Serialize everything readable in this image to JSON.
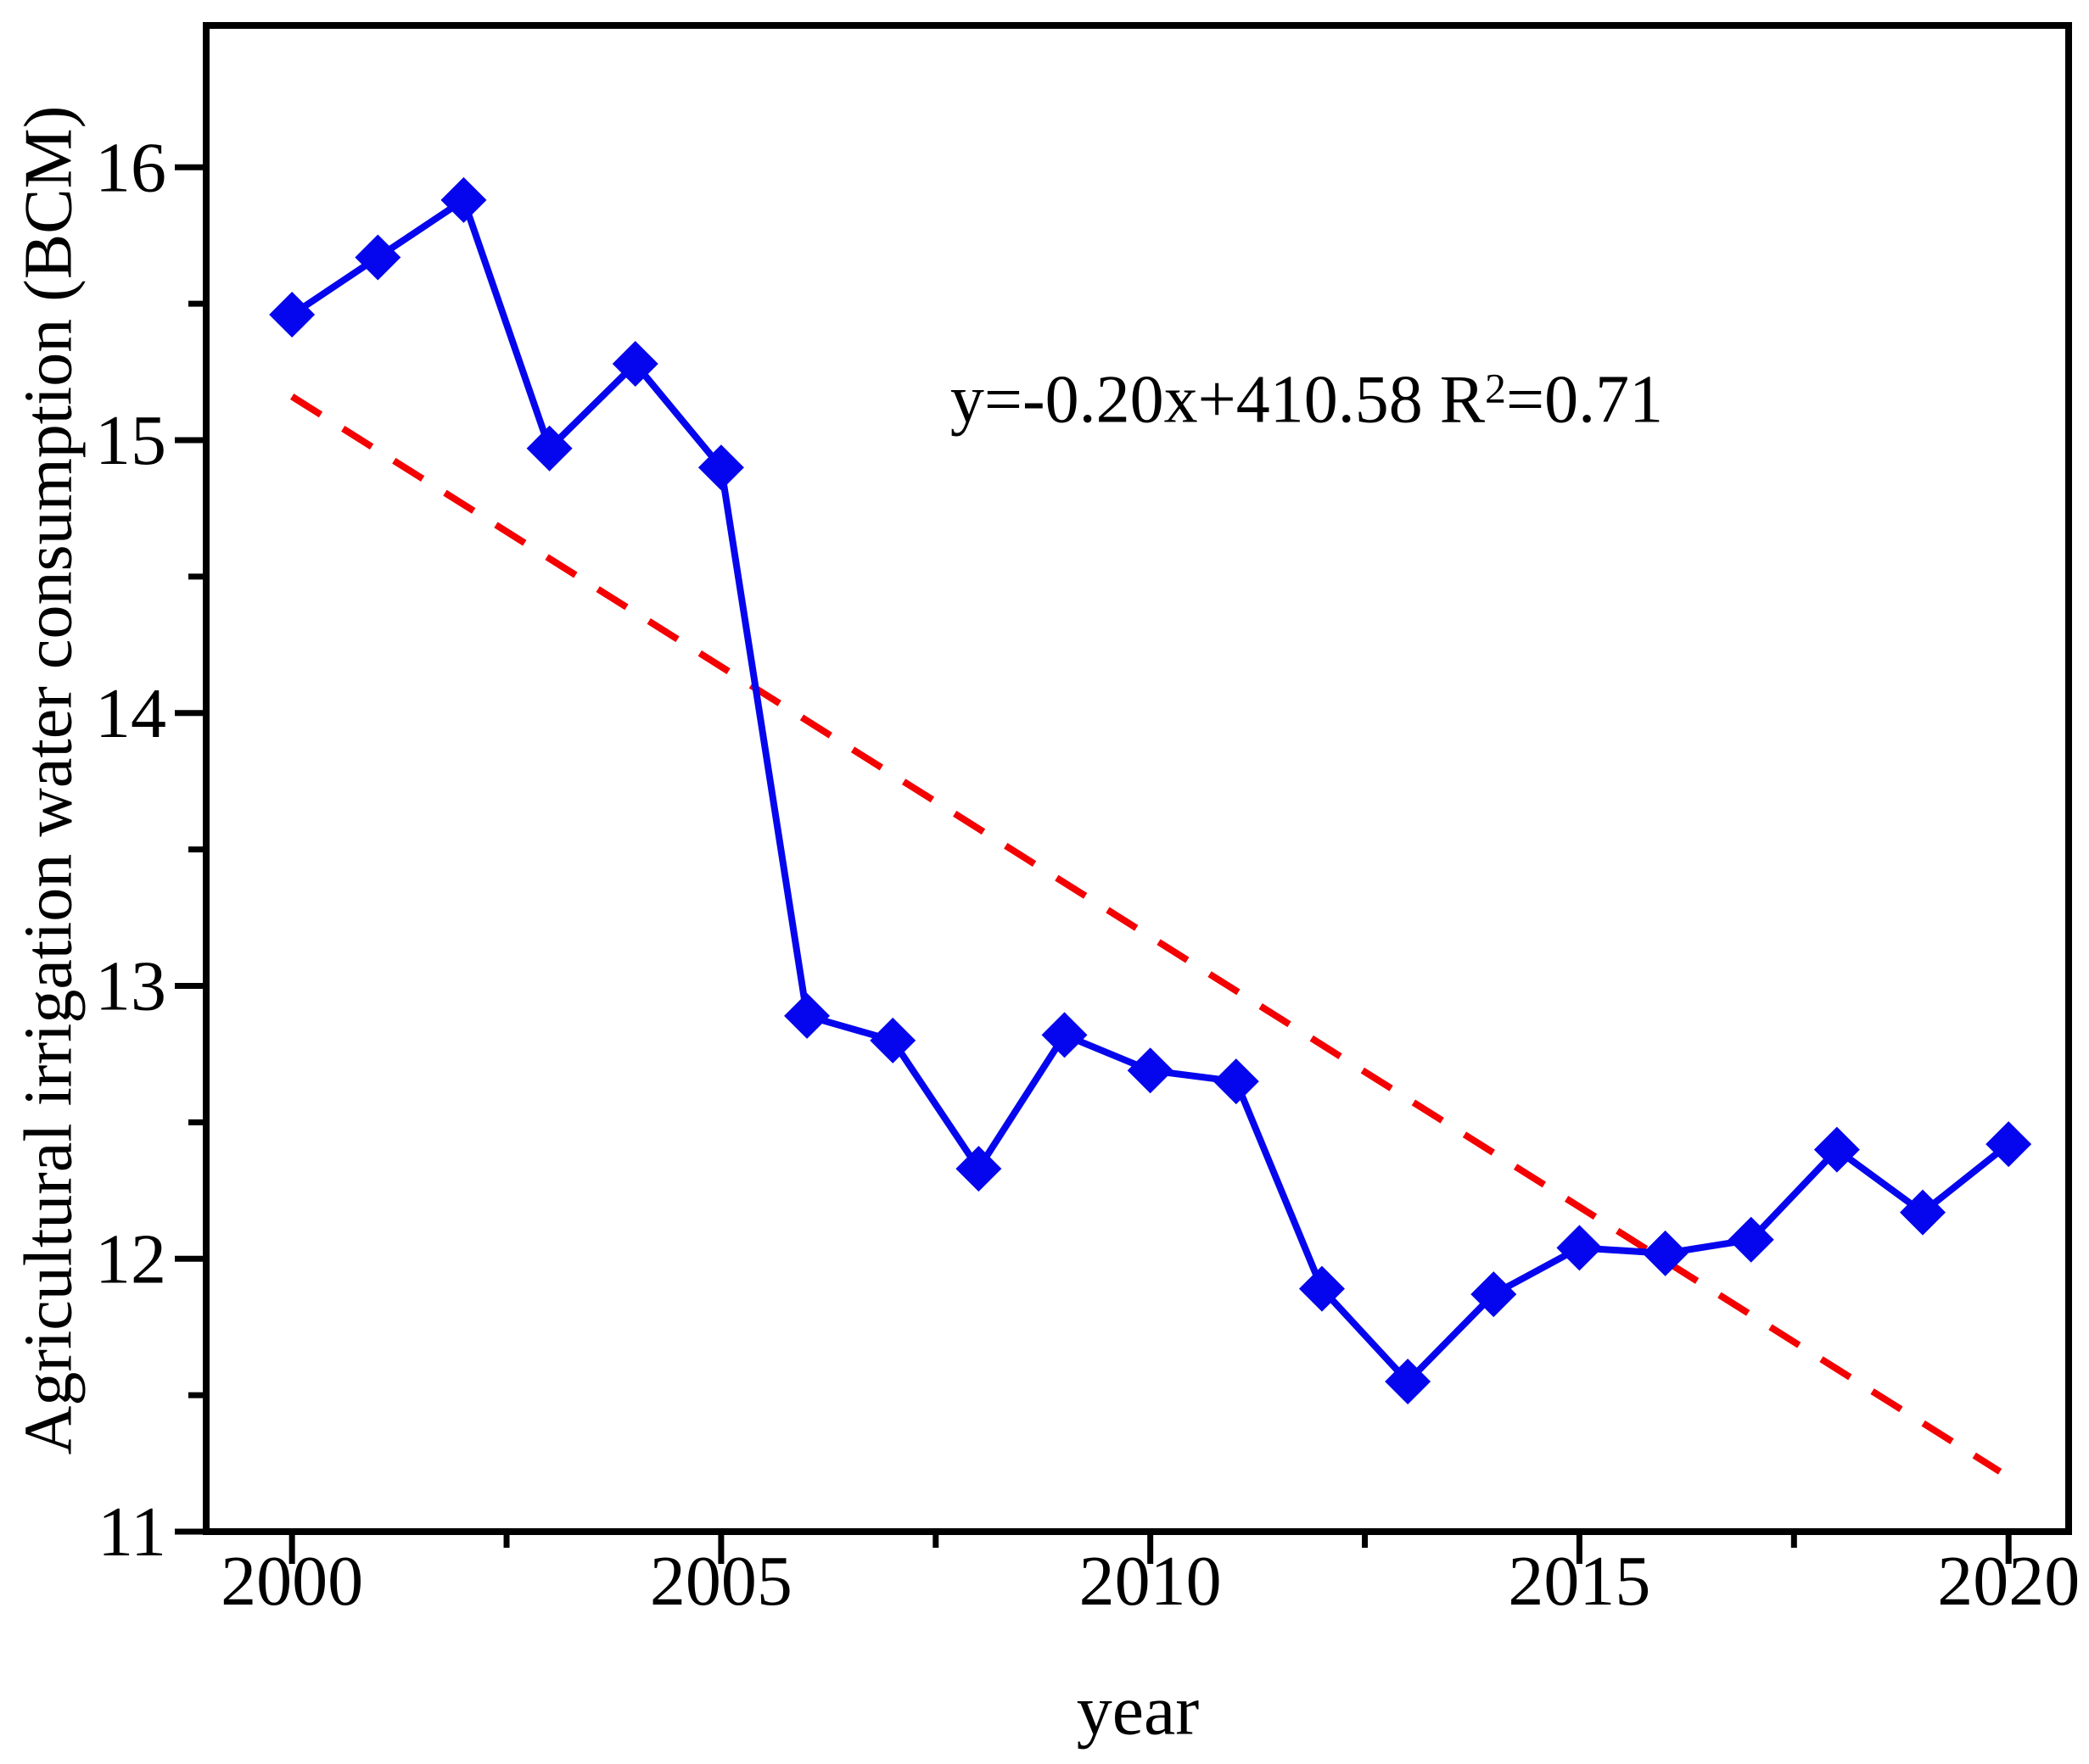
{
  "chart_data": {
    "type": "line",
    "title": "",
    "xlabel": "year",
    "ylabel": "Agricultural irrigation water consumption (BCM)",
    "x": [
      2000,
      2001,
      2002,
      2003,
      2004,
      2005,
      2006,
      2007,
      2008,
      2009,
      2010,
      2011,
      2012,
      2013,
      2014,
      2015,
      2016,
      2017,
      2018,
      2019,
      2020
    ],
    "series": [
      {
        "name": "Agricultural irrigation water consumption",
        "marker": "diamond",
        "color": "#0606ee",
        "values": [
          15.46,
          15.67,
          15.88,
          14.97,
          15.28,
          14.9,
          12.89,
          12.8,
          12.33,
          12.82,
          12.69,
          12.65,
          11.89,
          11.55,
          11.87,
          12.04,
          12.02,
          12.07,
          12.4,
          12.17,
          12.42
        ]
      }
    ],
    "trend_line": {
      "style": "dashed",
      "color": "#f40000",
      "x_start": 2000,
      "y_start": 15.16,
      "x_end": 2019.9,
      "y_end": 11.22
    },
    "annotation": {
      "prefix": "y=-0.20x+410.58 R",
      "superscript": "2",
      "suffix": "=0.71",
      "full_text": "y=-0.20x+410.58 R²=0.71"
    },
    "xlim": [
      1999.0,
      2020.7
    ],
    "ylim": [
      11,
      16.52
    ],
    "x_major_ticks": [
      2000,
      2005,
      2010,
      2015,
      2020
    ],
    "x_minor_ticks": [
      2002.5,
      2007.5,
      2012.5,
      2017.5
    ],
    "y_major_ticks": [
      11,
      12,
      13,
      14,
      15,
      16
    ],
    "y_minor_ticks": [
      11.5,
      12.5,
      13.5,
      14.5,
      15.5
    ],
    "grid": false,
    "legend": "none",
    "colors": {
      "series": "#0606ee",
      "trend": "#f40000",
      "axis": "#000000",
      "background": "#ffffff"
    }
  }
}
